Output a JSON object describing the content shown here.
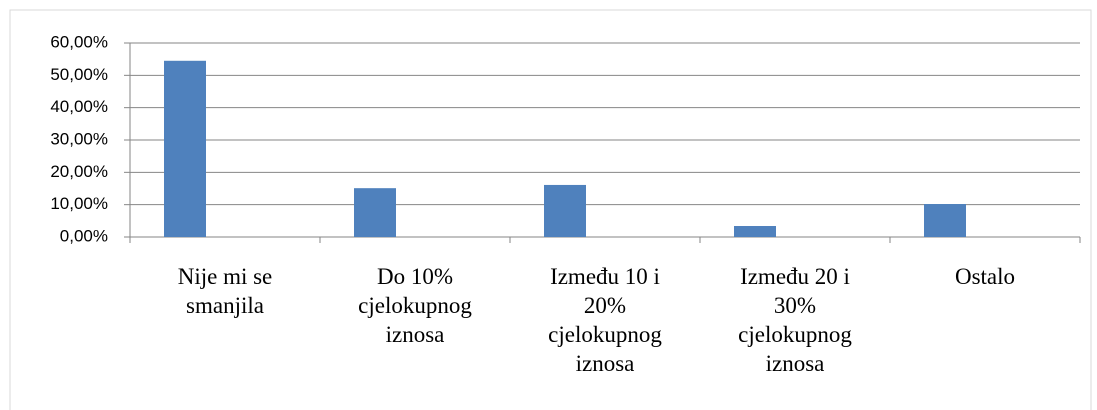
{
  "chart_data": {
    "type": "bar",
    "categories": [
      "Nije mi se smanjila",
      "Do 10% cjelokupnog iznosa",
      "Između 10 i 20% cjelokupnog iznosa",
      "Između 20 i 30% cjelokupnog iznosa",
      "Ostalo"
    ],
    "values": [
      54.5,
      15.1,
      16.1,
      3.4,
      10.2
    ],
    "color": "#4f81bd",
    "ylim": [
      0,
      60
    ],
    "yticks": [
      {
        "value": 0,
        "label": "0,00%"
      },
      {
        "value": 10,
        "label": "10,00%"
      },
      {
        "value": 20,
        "label": "20,00%"
      },
      {
        "value": 30,
        "label": "30,00%"
      },
      {
        "value": 40,
        "label": "40,00%"
      },
      {
        "value": 50,
        "label": "50,00%"
      },
      {
        "value": 60,
        "label": "60,00%"
      }
    ],
    "grid": true
  }
}
